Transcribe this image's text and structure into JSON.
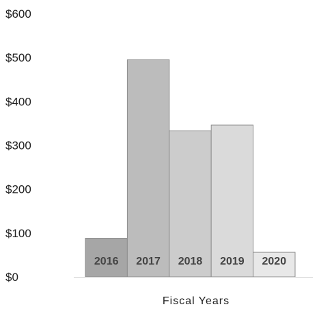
{
  "chart_data": {
    "type": "bar",
    "categories": [
      "2016",
      "2017",
      "2018",
      "2019",
      "2020"
    ],
    "values": [
      88,
      495,
      333,
      346,
      56
    ],
    "colors": [
      "#a6a6a6",
      "#bcbcbc",
      "#cccccc",
      "#dadada",
      "#e8e8e8"
    ],
    "bar_border": "#8c8c8c",
    "xlabel": "Fiscal Years",
    "ylabel": "",
    "ylim": [
      0,
      600
    ],
    "yticks": [
      {
        "value": 0,
        "label": "$0"
      },
      {
        "value": 100,
        "label": "$100"
      },
      {
        "value": 200,
        "label": "$200"
      },
      {
        "value": 300,
        "label": "$300"
      },
      {
        "value": 400,
        "label": "$400"
      },
      {
        "value": 500,
        "label": "$500"
      },
      {
        "value": 600,
        "label": "$600"
      }
    ],
    "grid": false,
    "data_labels_position": "inside-bottom"
  }
}
